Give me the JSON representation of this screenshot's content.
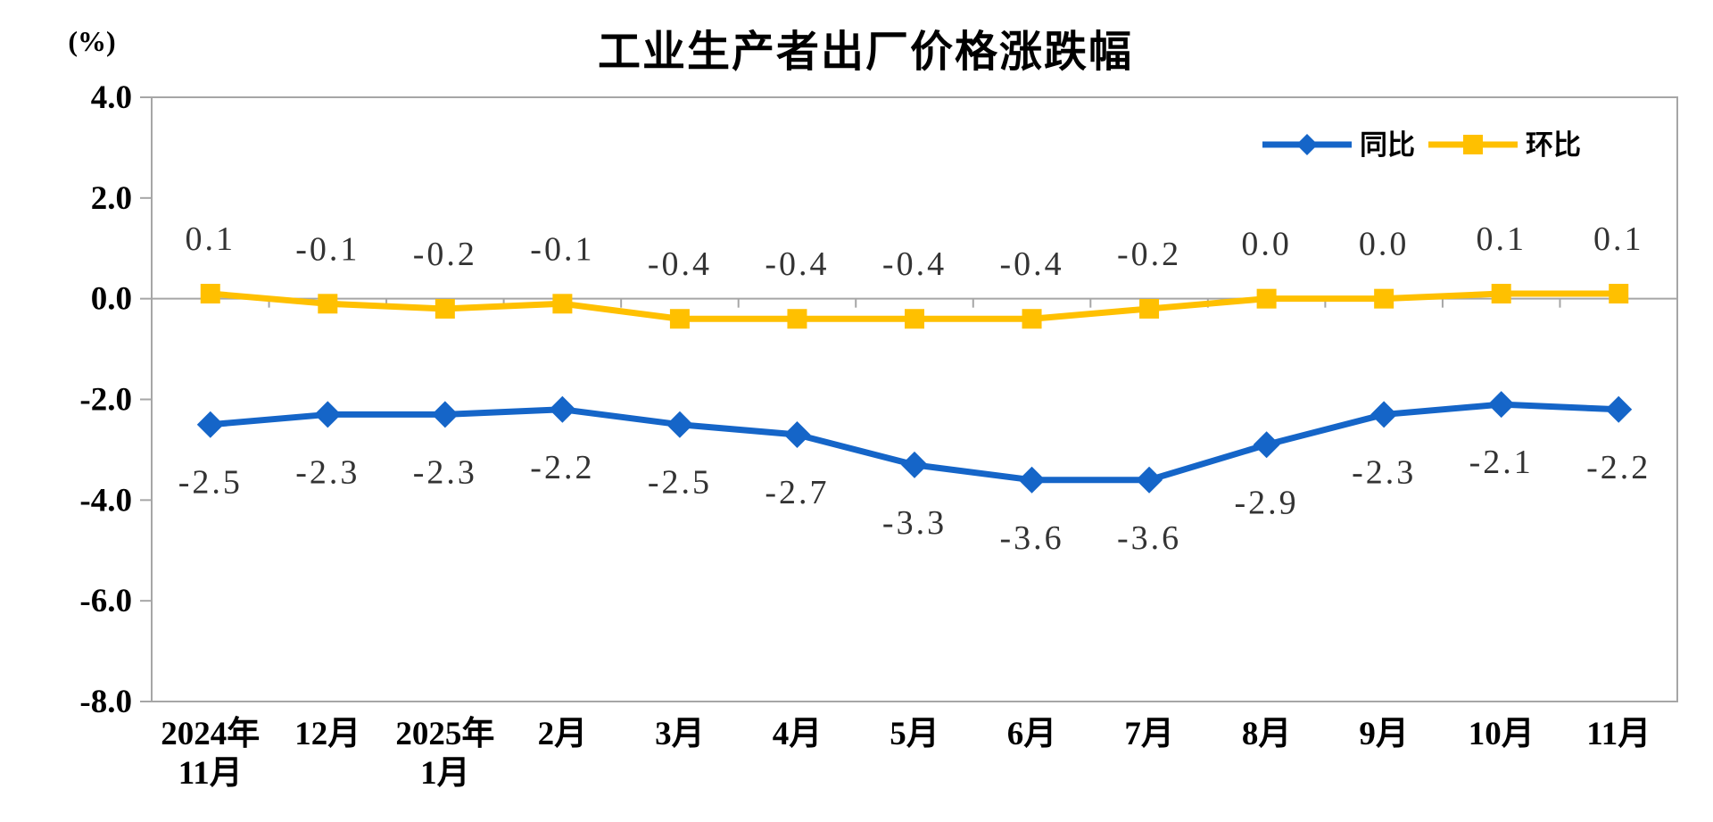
{
  "chart_data": {
    "type": "line",
    "title": "工业生产者出厂价格涨跌幅",
    "ylabel": "(%)",
    "xlabel": "",
    "ylim": [
      -8.0,
      4.0
    ],
    "grid": "zero-line-only",
    "legend_position": "top-right",
    "y_axis": {
      "tick_labels": [
        "4.0",
        "2.0",
        "0.0",
        "-2.0",
        "-4.0",
        "-6.0",
        "-8.0"
      ],
      "tick_values": [
        4,
        2,
        0,
        -2,
        -4,
        -6,
        -8
      ]
    },
    "categories": [
      [
        "2024年",
        "11月"
      ],
      [
        "12月"
      ],
      [
        "2025年",
        "1月"
      ],
      [
        "2月"
      ],
      [
        "3月"
      ],
      [
        "4月"
      ],
      [
        "5月"
      ],
      [
        "6月"
      ],
      [
        "7月"
      ],
      [
        "8月"
      ],
      [
        "9月"
      ],
      [
        "10月"
      ],
      [
        "11月"
      ]
    ],
    "series": [
      {
        "name": "同比",
        "marker": "diamond",
        "color": "#1565C8",
        "label_position": "below",
        "values": [
          -2.5,
          -2.3,
          -2.3,
          -2.2,
          -2.5,
          -2.7,
          -3.3,
          -3.6,
          -3.6,
          -2.9,
          -2.3,
          -2.1,
          -2.2
        ],
        "labels": [
          "-2.5",
          "-2.3",
          "-2.3",
          "-2.2",
          "-2.5",
          "-2.7",
          "-3.3",
          "-3.6",
          "-3.6",
          "-2.9",
          "-2.3",
          "-2.1",
          "-2.2"
        ]
      },
      {
        "name": "环比",
        "marker": "square",
        "color": "#FFC000",
        "label_position": "above",
        "values": [
          0.1,
          -0.1,
          -0.2,
          -0.1,
          -0.4,
          -0.4,
          -0.4,
          -0.4,
          -0.2,
          0.0,
          0.0,
          0.1,
          0.1
        ],
        "labels": [
          "0.1",
          "-0.1",
          "-0.2",
          "-0.1",
          "-0.4",
          "-0.4",
          "-0.4",
          "-0.4",
          "-0.2",
          "0.0",
          "0.0",
          "0.1",
          "0.1"
        ]
      }
    ],
    "colors": {
      "axis_line": "#A6A6A6",
      "data_label_text": "#333333",
      "tick_label_text": "#000000",
      "title_text": "#000000"
    }
  }
}
